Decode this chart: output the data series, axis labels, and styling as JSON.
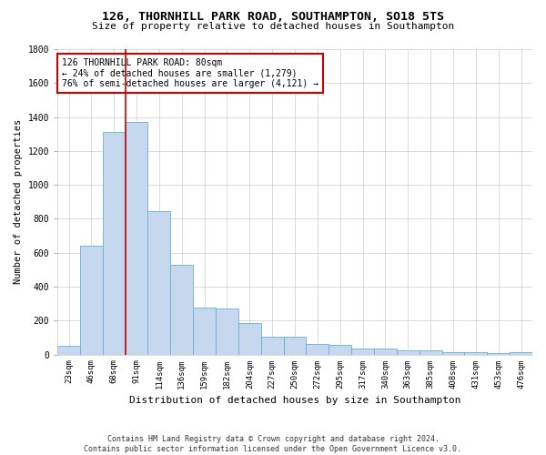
{
  "title_line1": "126, THORNHILL PARK ROAD, SOUTHAMPTON, SO18 5TS",
  "title_line2": "Size of property relative to detached houses in Southampton",
  "xlabel": "Distribution of detached houses by size in Southampton",
  "ylabel": "Number of detached properties",
  "categories": [
    "23sqm",
    "46sqm",
    "68sqm",
    "91sqm",
    "114sqm",
    "136sqm",
    "159sqm",
    "182sqm",
    "204sqm",
    "227sqm",
    "250sqm",
    "272sqm",
    "295sqm",
    "317sqm",
    "340sqm",
    "363sqm",
    "385sqm",
    "408sqm",
    "431sqm",
    "453sqm",
    "476sqm"
  ],
  "values": [
    50,
    640,
    1310,
    1370,
    845,
    530,
    275,
    270,
    185,
    105,
    105,
    60,
    55,
    35,
    35,
    25,
    22,
    15,
    12,
    10,
    15
  ],
  "bar_color": "#c5d8ed",
  "bar_edge_color": "#6aaed6",
  "ylim": [
    0,
    1800
  ],
  "yticks": [
    0,
    200,
    400,
    600,
    800,
    1000,
    1200,
    1400,
    1600,
    1800
  ],
  "property_line_x": 2.5,
  "annotation_text_line1": "126 THORNHILL PARK ROAD: 80sqm",
  "annotation_text_line2": "← 24% of detached houses are smaller (1,279)",
  "annotation_text_line3": "76% of semi-detached houses are larger (4,121) →",
  "annotation_box_color": "#ffffff",
  "annotation_border_color": "#cc0000",
  "red_line_color": "#cc0000",
  "grid_color": "#cccccc",
  "background_color": "#ffffff",
  "footnote_line1": "Contains HM Land Registry data © Crown copyright and database right 2024.",
  "footnote_line2": "Contains public sector information licensed under the Open Government Licence v3.0."
}
